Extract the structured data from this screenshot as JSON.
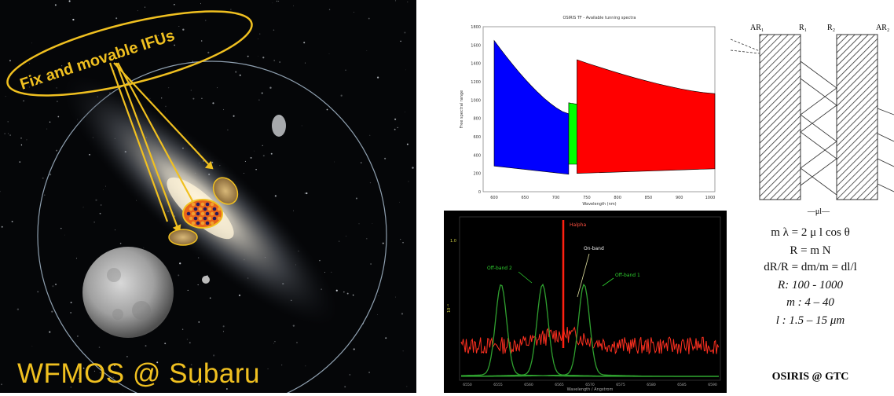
{
  "left_panel": {
    "ifu_callout": "Fix and movable IFUs",
    "caption": "WFMOS @ Subaru",
    "colors": {
      "callout": "#f0c020",
      "ifu_active": "#e8641a"
    }
  },
  "chart_data": [
    {
      "type": "area",
      "title": "OSIRIS TF - Available tunning spectra",
      "xlabel": "Wavelength (nm)",
      "ylabel": "Free spectral range",
      "x_ticks": [
        "600",
        "650",
        "700",
        "750",
        "800",
        "850",
        "900",
        "1000"
      ],
      "y_ticks": [
        "1800",
        "1600",
        "1400",
        "1200",
        "1000",
        "800",
        "600",
        "400",
        "200",
        "0"
      ],
      "series": [
        {
          "color": "#0000ff",
          "x": [
            600,
            735
          ],
          "upper": [
            1650,
            850
          ],
          "lower": [
            280,
            190
          ]
        },
        {
          "color": "#00ff00",
          "x": [
            735,
            760
          ],
          "upper": [
            970,
            950
          ],
          "lower": [
            300,
            300
          ]
        },
        {
          "color": "#ff0000",
          "x": [
            750,
            1000
          ],
          "upper": [
            1440,
            1070
          ],
          "lower": [
            200,
            250
          ]
        }
      ]
    },
    {
      "type": "line",
      "xlabel": "Wavelength / Angstrom",
      "ylabel": "",
      "x_ticks": [
        "6550",
        "6555",
        "6560",
        "6565",
        "6570",
        "6575",
        "6580",
        "6585",
        "6590"
      ],
      "annotations": [
        "Halpha",
        "On-band",
        "Off-band 2",
        "Off-band 1"
      ],
      "series": [
        {
          "color": "#ff3020",
          "kind": "spectrum"
        },
        {
          "color": "#2fa02f",
          "kind": "filter",
          "center": 6562
        },
        {
          "color": "#2fa02f",
          "kind": "filter",
          "center": 6555
        },
        {
          "color": "#2fa02f",
          "kind": "filter",
          "center": 6569
        }
      ]
    }
  ],
  "optics": {
    "labels": [
      "AR₁",
      "R₁",
      "R₂",
      "AR₂"
    ],
    "gap_label": "—μl—",
    "equations": [
      "m λ  =  2 μ l cos θ",
      "R = m N",
      "dR/R = dm/m = dl/l",
      "R: 100 -  1000",
      "m : 4 – 40",
      "l  : 1.5 – 15 μm"
    ],
    "caption": "OSIRIS @ GTC"
  }
}
